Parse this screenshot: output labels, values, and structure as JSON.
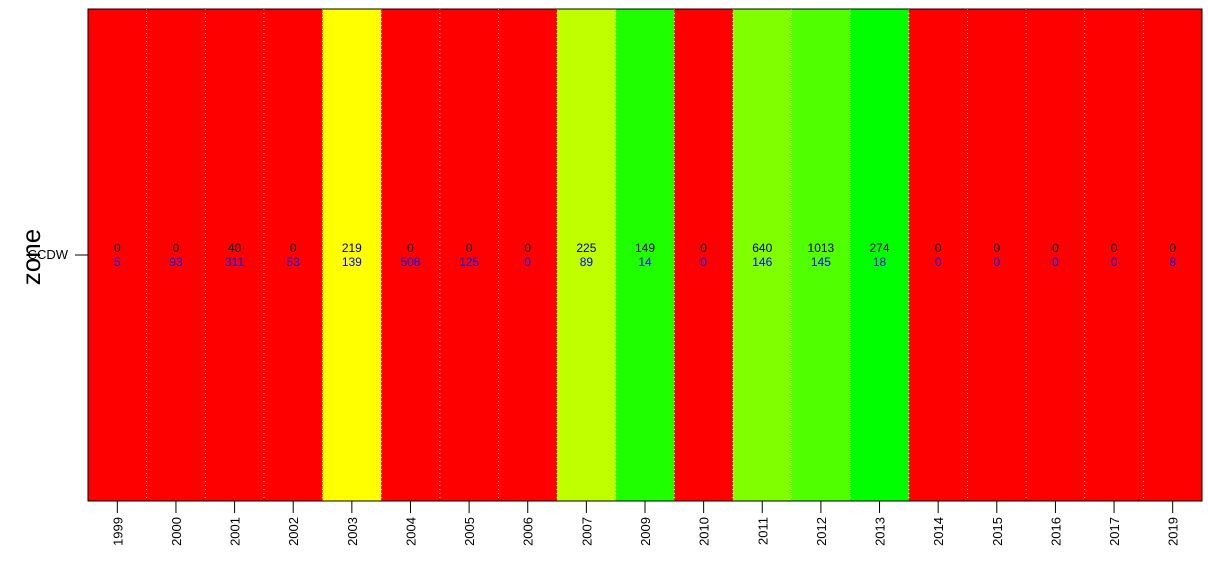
{
  "chart_data": {
    "type": "heatmap",
    "ylabel": "zone",
    "row_label": "CCDW",
    "categories": [
      "1999",
      "2000",
      "2001",
      "2002",
      "2003",
      "2004",
      "2005",
      "2006",
      "2007",
      "2009",
      "2010",
      "2011",
      "2012",
      "2013",
      "2014",
      "2015",
      "2016",
      "2017",
      "2019"
    ],
    "series": [
      {
        "values": [
          0,
          0,
          40,
          0,
          219,
          0,
          0,
          0,
          225,
          149,
          0,
          640,
          1013,
          274,
          0,
          0,
          0,
          0,
          0
        ]
      },
      {
        "values": [
          5,
          93,
          311,
          53,
          139,
          508,
          125,
          0,
          89,
          14,
          0,
          146,
          145,
          18,
          0,
          0,
          0,
          0,
          8
        ]
      }
    ],
    "cell_colors": [
      "#ff0000",
      "#ff0000",
      "#ff0000",
      "#ff0000",
      "#ffff00",
      "#ff0000",
      "#ff0000",
      "#ff0000",
      "#c0ff00",
      "#20ff00",
      "#ff0000",
      "#80ff00",
      "#50ff00",
      "#00ff00",
      "#ff0000",
      "#ff0000",
      "#ff0000",
      "#ff0000",
      "#ff0000"
    ],
    "series_colors": [
      "#000000",
      "#0000ff"
    ],
    "grid": true,
    "grid_color": "#ffffff"
  }
}
